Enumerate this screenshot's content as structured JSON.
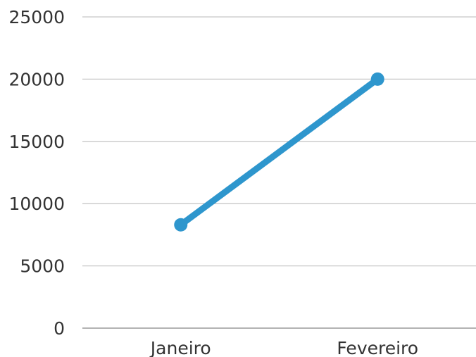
{
  "chart_data": {
    "type": "line",
    "categories": [
      "Janeiro",
      "Fevereiro"
    ],
    "series": [
      {
        "values": [
          8300,
          20000
        ]
      }
    ],
    "y_ticks": [
      "0",
      "5000",
      "10000",
      "15000",
      "20000",
      "25000"
    ],
    "ylim": [
      0,
      25000
    ],
    "grid": true,
    "legend": "none",
    "colors": {
      "series": "#2e96cd",
      "grid": "#c8c8c8",
      "axis": "#9a9a9a",
      "text": "#333333"
    }
  }
}
